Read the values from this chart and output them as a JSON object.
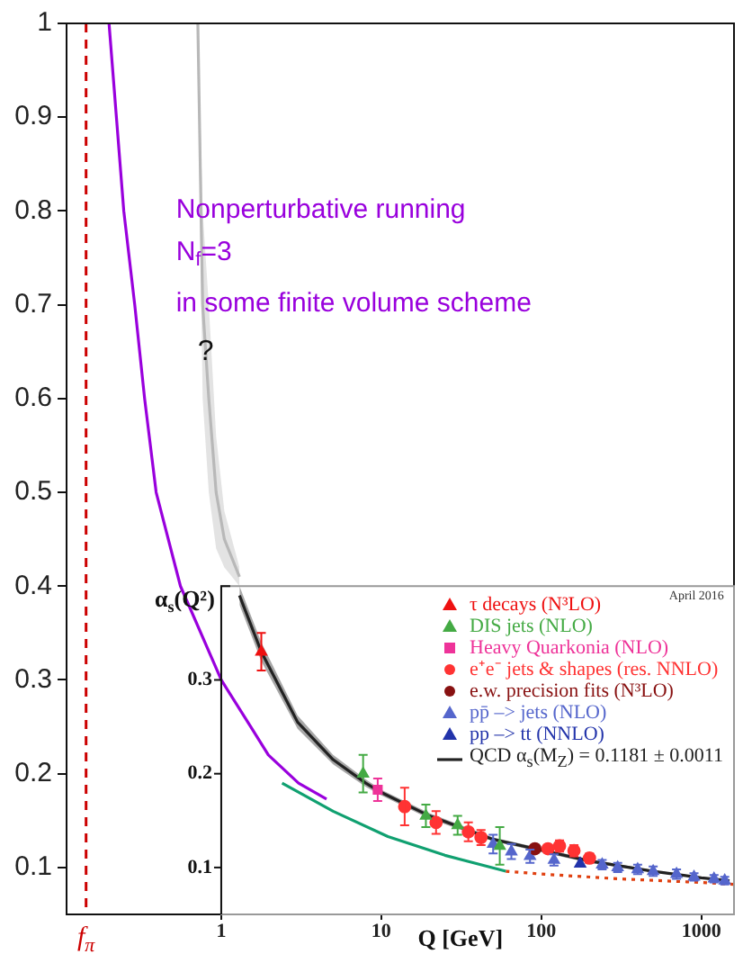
{
  "chart_data": {
    "type": "scatter",
    "log": "x",
    "xlim": [
      0.108,
      1600
    ],
    "xticks": [
      1,
      10,
      100,
      1000
    ],
    "ylim": [
      0.05,
      1
    ],
    "yticks": [
      0.1,
      0.2,
      0.3,
      0.4,
      0.5,
      0.6,
      0.7,
      0.8,
      0.9,
      1
    ],
    "y2lim": [
      0.05,
      0.4
    ],
    "y2ticks": [
      0.1,
      0.2,
      0.3
    ],
    "xlabel": "Q [GeV]",
    "y2label": "α$_{s}$(Q²)",
    "legend": "right",
    "series": [
      {
        "type": "line",
        "color": "#9900dd",
        "x": [
          0.199,
          0.246,
          0.288,
          0.332,
          0.392,
          0.556,
          1.0,
          1.53,
          1.97,
          3.04,
          4.55
        ],
        "values": [
          1,
          0.8,
          0.7,
          0.6,
          0.5,
          0.4,
          0.3,
          0.25,
          0.22,
          0.19,
          0.173
        ]
      },
      {
        "type": "line",
        "color": "#b8b8b8",
        "x": [
          0.714,
          0.765,
          0.836,
          0.929,
          1.046,
          1.3
        ],
        "values": [
          1,
          0.7,
          0.6,
          0.5,
          0.45,
          0.41
        ],
        "lower": [
          0.97,
          0.6,
          0.5,
          0.44,
          0.42,
          0.4
        ],
        "upper": [
          1,
          0.8,
          0.7,
          0.56,
          0.48,
          0.42
        ]
      },
      {
        "name": "τ decays (N³LO)",
        "color": "#ee1111",
        "marker": "triangle",
        "x": [
          1.78
        ],
        "values": [
          0.33
        ],
        "errors": [
          0.02
        ]
      },
      {
        "name": "DIS jets (NLO)",
        "color": "#44aa44",
        "marker": "triangle",
        "x": [
          7.7,
          19,
          30,
          55
        ],
        "values": [
          0.2,
          0.155,
          0.145,
          0.123
        ],
        "errors": [
          0.02,
          0.012,
          0.01,
          0.02
        ]
      },
      {
        "name": "Heavy Quarkonia (NLO)",
        "color": "#ee3399",
        "marker": "square",
        "x": [
          9.5
        ],
        "values": [
          0.183
        ],
        "errors": [
          0.012
        ]
      },
      {
        "name": "e⁺e⁻ jets & shapes (res. NNLO)",
        "color": "#ff3333",
        "marker": "circle",
        "x": [
          14,
          22,
          35,
          42,
          110,
          130,
          160,
          200
        ],
        "values": [
          0.165,
          0.148,
          0.138,
          0.132,
          0.12,
          0.123,
          0.118,
          0.11
        ],
        "errors": [
          0.02,
          0.012,
          0.01,
          0.008,
          0.004,
          0.006,
          0.006,
          0.005
        ]
      },
      {
        "name": "e.w. precision fits (N³LO)",
        "color": "#881111",
        "marker": "circle",
        "x": [
          91.2
        ],
        "values": [
          0.12
        ]
      },
      {
        "name": "pp̄ –> jets (NLO)",
        "color": "#5566cc",
        "marker": "triangle",
        "x": [
          50,
          65,
          85,
          120,
          240,
          300,
          400,
          500,
          700,
          900,
          1200,
          1400
        ],
        "values": [
          0.125,
          0.117,
          0.112,
          0.108,
          0.103,
          0.1,
          0.098,
          0.096,
          0.093,
          0.09,
          0.088,
          0.086
        ],
        "errors": [
          0.01,
          0.008,
          0.007,
          0.006,
          0.005,
          0.005,
          0.005,
          0.005,
          0.005,
          0.004,
          0.004,
          0.004
        ]
      },
      {
        "name": "pp –> tt (NNLO)",
        "color": "#2233aa",
        "marker": "triangle",
        "x": [
          175
        ],
        "values": [
          0.104
        ]
      },
      {
        "name": "QCD α$_{s}$(M$_{Z}$) = 0.1181 ± 0.0011",
        "type": "line",
        "color": "#222222",
        "x": [
          1.3,
          1.78,
          3,
          5,
          8,
          10,
          20,
          50,
          91.2,
          200,
          500,
          1000,
          1500
        ],
        "values": [
          0.39,
          0.33,
          0.255,
          0.215,
          0.19,
          0.18,
          0.155,
          0.13,
          0.12,
          0.107,
          0.096,
          0.089,
          0.086
        ],
        "lower": [
          0.38,
          0.32,
          0.248,
          0.21,
          0.186,
          0.177,
          0.152,
          0.128,
          0.118,
          0.105,
          0.095,
          0.088,
          0.085
        ],
        "upper": [
          0.4,
          0.34,
          0.262,
          0.22,
          0.194,
          0.183,
          0.158,
          0.132,
          0.122,
          0.109,
          0.097,
          0.09,
          0.087
        ]
      },
      {
        "type": "line",
        "color": "#10a070",
        "x": [
          2.4,
          5,
          11,
          25,
          60
        ],
        "values": [
          0.19,
          0.16,
          0.133,
          0.113,
          0.096
        ]
      },
      {
        "type": "line",
        "line_style": "dotted",
        "color": "#e04010",
        "x": [
          60,
          100,
          300,
          1000,
          1600
        ],
        "values": [
          0.096,
          0.093,
          0.088,
          0.084,
          0.082
        ]
      }
    ],
    "annotations": [
      "Nonperturbative running",
      "N$_{f}$=3",
      "in some finite volume scheme",
      {
        "text": "?",
        "x": 0.8,
        "y": 0.65
      },
      "April 2016"
    ],
    "ref_lines": [
      {
        "axis": "x",
        "value": 0.143,
        "label": "f$_{π}$",
        "color": "#cc0000",
        "line_style": "dashed"
      }
    ]
  }
}
